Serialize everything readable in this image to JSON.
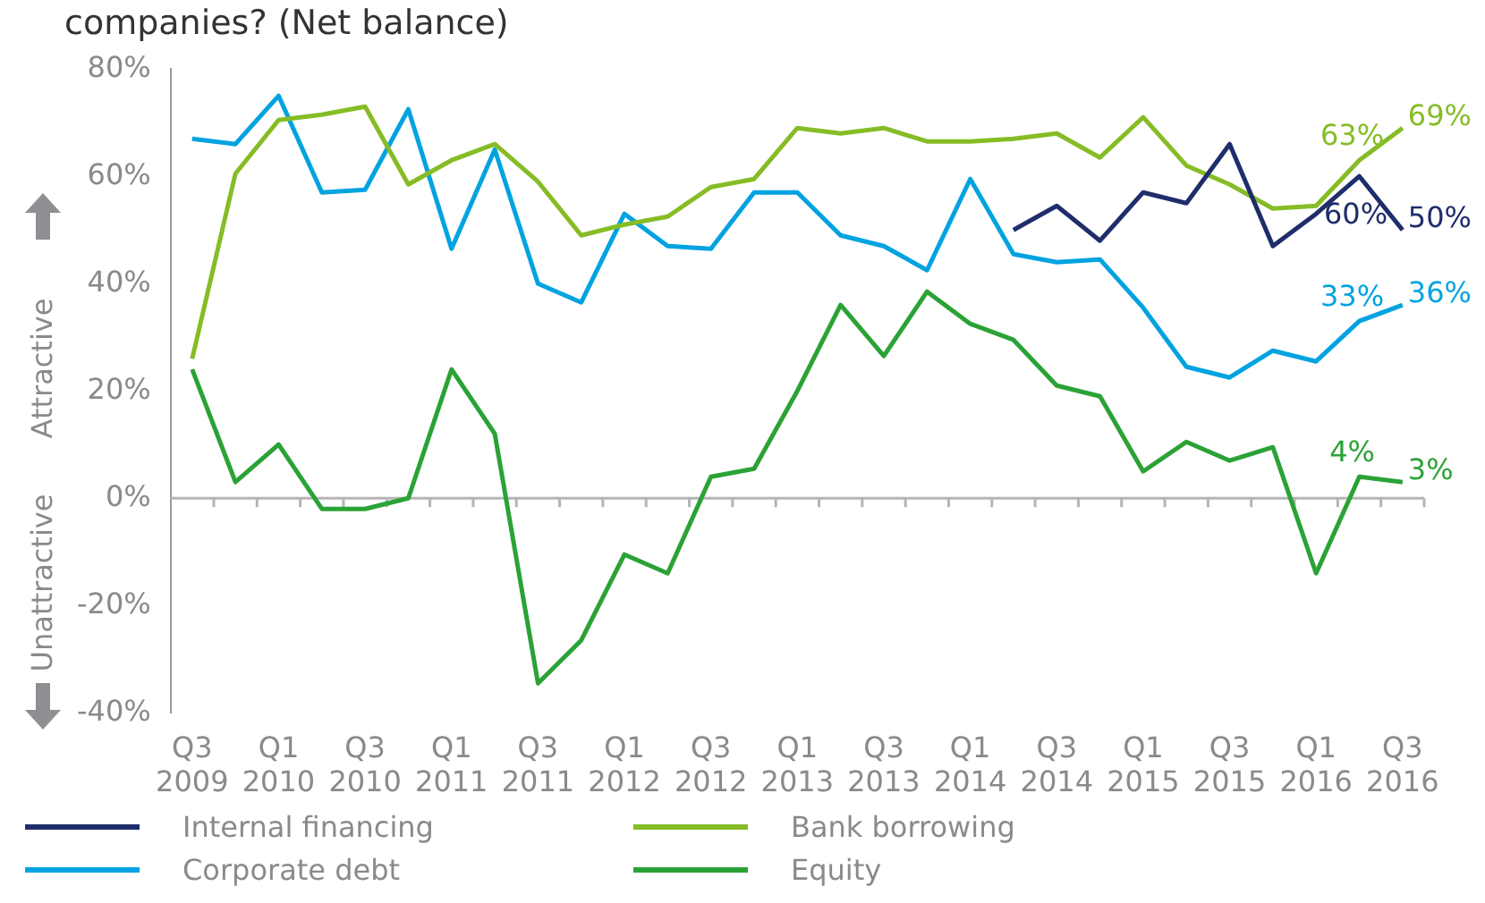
{
  "chart_data": {
    "type": "line",
    "title": "companies? (Net balance)",
    "categories": [
      "Q3 2009",
      null,
      "Q1 2010",
      null,
      "Q3 2010",
      null,
      "Q1 2011",
      null,
      "Q3 2011",
      null,
      "Q1 2012",
      null,
      "Q3 2012",
      null,
      "Q1 2013",
      null,
      "Q3 2013",
      null,
      "Q1 2014",
      null,
      "Q3 2014",
      null,
      "Q1 2015",
      null,
      "Q3 2015",
      null,
      "Q1 2016",
      null,
      "Q3 2016"
    ],
    "series": [
      {
        "name": "Internal financing",
        "color": "#1f2d6b",
        "values": [
          null,
          null,
          null,
          null,
          null,
          null,
          null,
          null,
          null,
          null,
          null,
          null,
          null,
          null,
          null,
          null,
          null,
          null,
          null,
          50,
          54.5,
          48,
          57,
          55,
          66,
          47,
          53,
          60,
          50
        ],
        "value_labels": [
          null,
          null,
          null,
          null,
          null,
          null,
          null,
          null,
          null,
          null,
          null,
          null,
          null,
          null,
          null,
          null,
          null,
          null,
          null,
          null,
          null,
          null,
          null,
          null,
          null,
          null,
          null,
          "60%",
          "50%"
        ]
      },
      {
        "name": "Bank borrowing",
        "color": "#86bc25",
        "values": [
          26,
          60.5,
          70.5,
          71.5,
          73,
          58.5,
          63,
          66,
          59,
          49,
          51,
          52.5,
          58,
          59.5,
          69,
          68,
          69,
          66.5,
          66.5,
          67,
          68,
          63.5,
          71,
          62,
          58.5,
          54,
          54.5,
          63,
          69
        ],
        "value_labels": [
          null,
          null,
          null,
          null,
          null,
          null,
          null,
          null,
          null,
          null,
          null,
          null,
          null,
          null,
          null,
          null,
          null,
          null,
          null,
          null,
          null,
          null,
          null,
          null,
          null,
          null,
          null,
          "63%",
          "69%"
        ]
      },
      {
        "name": "Corporate debt",
        "color": "#00a3e0",
        "values": [
          67,
          66,
          75,
          57,
          57.5,
          72.5,
          46.5,
          65,
          40,
          36.5,
          53,
          47,
          46.5,
          57,
          57,
          49,
          47,
          42.5,
          59.5,
          45.5,
          44,
          44.5,
          35.5,
          24.5,
          22.5,
          27.5,
          25.5,
          33,
          36
        ],
        "value_labels": [
          null,
          null,
          null,
          null,
          null,
          null,
          null,
          null,
          null,
          null,
          null,
          null,
          null,
          null,
          null,
          null,
          null,
          null,
          null,
          null,
          null,
          null,
          null,
          null,
          null,
          null,
          null,
          "33%",
          "36%"
        ]
      },
      {
        "name": "Equity",
        "color": "#2ba236",
        "values": [
          24,
          3,
          10,
          -2,
          -2,
          0,
          24,
          12,
          -34.5,
          -26.5,
          -10.5,
          -14,
          4,
          5.5,
          20,
          36,
          26.5,
          38.5,
          32.5,
          29.5,
          21,
          19,
          5,
          10.5,
          7,
          9.5,
          -14,
          4,
          3
        ],
        "value_labels": [
          null,
          null,
          null,
          null,
          null,
          null,
          null,
          null,
          null,
          null,
          null,
          null,
          null,
          null,
          null,
          null,
          null,
          null,
          null,
          null,
          null,
          null,
          null,
          null,
          null,
          null,
          null,
          "4%",
          "3%"
        ]
      }
    ],
    "ylim": [
      -40,
      80
    ],
    "yticks": [
      {
        "value": -40,
        "label": "-40%"
      },
      {
        "value": -20,
        "label": "-20%"
      },
      {
        "value": 0,
        "label": "0%"
      },
      {
        "value": 20,
        "label": "20%"
      },
      {
        "value": 40,
        "label": "40%"
      },
      {
        "value": 60,
        "label": "60%"
      },
      {
        "value": 80,
        "label": "80%"
      }
    ],
    "annotations": [
      "Attractive",
      "Unattractive"
    ],
    "legend": "bottom",
    "marker": "none",
    "line_style": "solid"
  }
}
